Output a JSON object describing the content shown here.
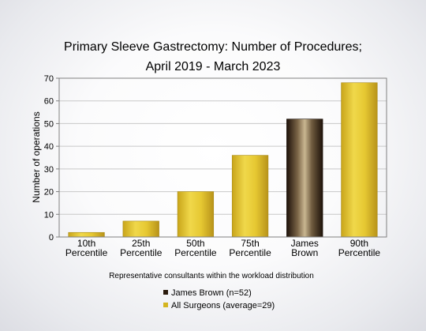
{
  "chart_data": {
    "type": "bar",
    "title": [
      "Primary Sleeve Gastrectomy: Number of Procedures;",
      "April 2019 - March 2023"
    ],
    "xlabel": "Representative consultants within the workload distribution",
    "ylabel": "Number of operations",
    "ylim": [
      0,
      70
    ],
    "yticks": [
      0,
      10,
      20,
      30,
      40,
      50,
      60,
      70
    ],
    "grid": true,
    "categories": [
      [
        "10th",
        "Percentile"
      ],
      [
        "25th",
        "Percentile"
      ],
      [
        "50th",
        "Percentile"
      ],
      [
        "75th",
        "Percentile"
      ],
      [
        "James",
        "Brown"
      ],
      [
        "90th",
        "Percentile"
      ]
    ],
    "values": [
      2,
      7,
      20,
      36,
      52,
      68
    ],
    "highlight_index": 4,
    "legend": [
      {
        "name": "James Brown (n=52)",
        "color": "#2a1a0c"
      },
      {
        "name": "All Surgeons (average=29)",
        "color": "#d4b51f"
      }
    ],
    "legend_position": "bottom-center",
    "colors": {
      "bar": "#d4b51f",
      "highlight": "#2a1a0c"
    }
  }
}
